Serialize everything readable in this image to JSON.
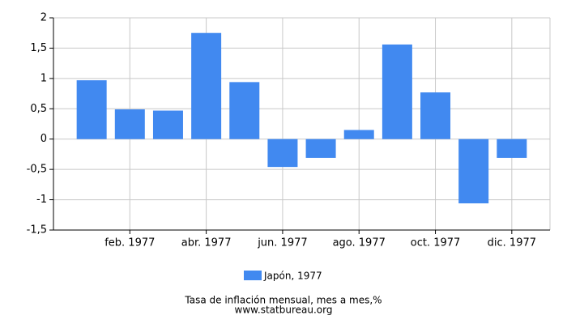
{
  "chart_data": {
    "type": "bar",
    "categories": [
      null,
      "feb. 1977",
      null,
      "abr. 1977",
      null,
      "jun. 1977",
      null,
      "ago. 1977",
      null,
      "oct. 1977",
      null,
      "dic. 1977"
    ],
    "series": [
      {
        "name": "Japón, 1977",
        "color": "#4189f0",
        "values": [
          0.97,
          0.49,
          0.47,
          1.75,
          0.94,
          -0.46,
          -0.31,
          0.15,
          1.56,
          0.77,
          -1.06,
          -0.31
        ]
      }
    ],
    "ylim": [
      -1.5,
      2
    ],
    "yticks": [
      {
        "value": -1.5,
        "label": "-1,5"
      },
      -1,
      {
        "value": -0.5,
        "label": "-0,5"
      },
      0,
      {
        "value": 0.5,
        "label": "0,5"
      },
      1,
      {
        "value": 1.5,
        "label": "1,5"
      },
      2
    ],
    "grid": true,
    "caption": "Tasa de inflación mensual, mes a mes,%",
    "source": "www.statbureau.org"
  }
}
